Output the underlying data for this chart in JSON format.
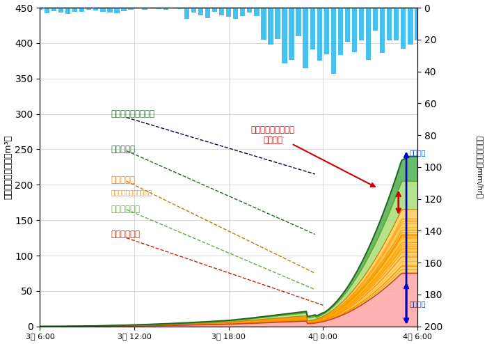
{
  "xlabel_ticks": [
    "3日 6:00",
    "3日 12:00",
    "3日 18:00",
    "4日 0:00",
    "4日 6:00"
  ],
  "ylabel_left": "洪水ボリューム（万m³）",
  "ylabel_right": "流域平均雨量（mm/hr）",
  "ylim_left": [
    0,
    450
  ],
  "ylim_right": [
    200,
    0
  ],
  "yticks_left": [
    0,
    50,
    100,
    150,
    200,
    250,
    300,
    350,
    400,
    450
  ],
  "yticks_right": [
    0,
    20,
    40,
    60,
    80,
    100,
    120,
    140,
    160,
    180,
    200
  ],
  "background_color": "#ffffff",
  "grid_color": "#aaaaaa",
  "rainfall_color": "#33bbee",
  "note_total_rain": "総降雨量",
  "note_total_discharge": "総排水量",
  "label_canal": "水路網谬留量",
  "label_pond": "ため池谬留量",
  "label_lowland": "低地浸水量",
  "label_lowland_sub": "（各町の浸水量の総和）",
  "label_paddy": "水田谬留量",
  "label_upland": "台地と丘陵地谬留量",
  "label_kawayamachi": "御溝川沿いの瓦屋町\nの浸水量",
  "c_canal": "#cc2200",
  "c_pond": "#ee8800",
  "c_lowland_fill": "#ffcc44",
  "c_lowland_lines": "#ffaa00",
  "c_paddy": "#88cc44",
  "c_upland": "#339933",
  "c_upland_dark": "#226622",
  "c_salmon": "#ff9988"
}
